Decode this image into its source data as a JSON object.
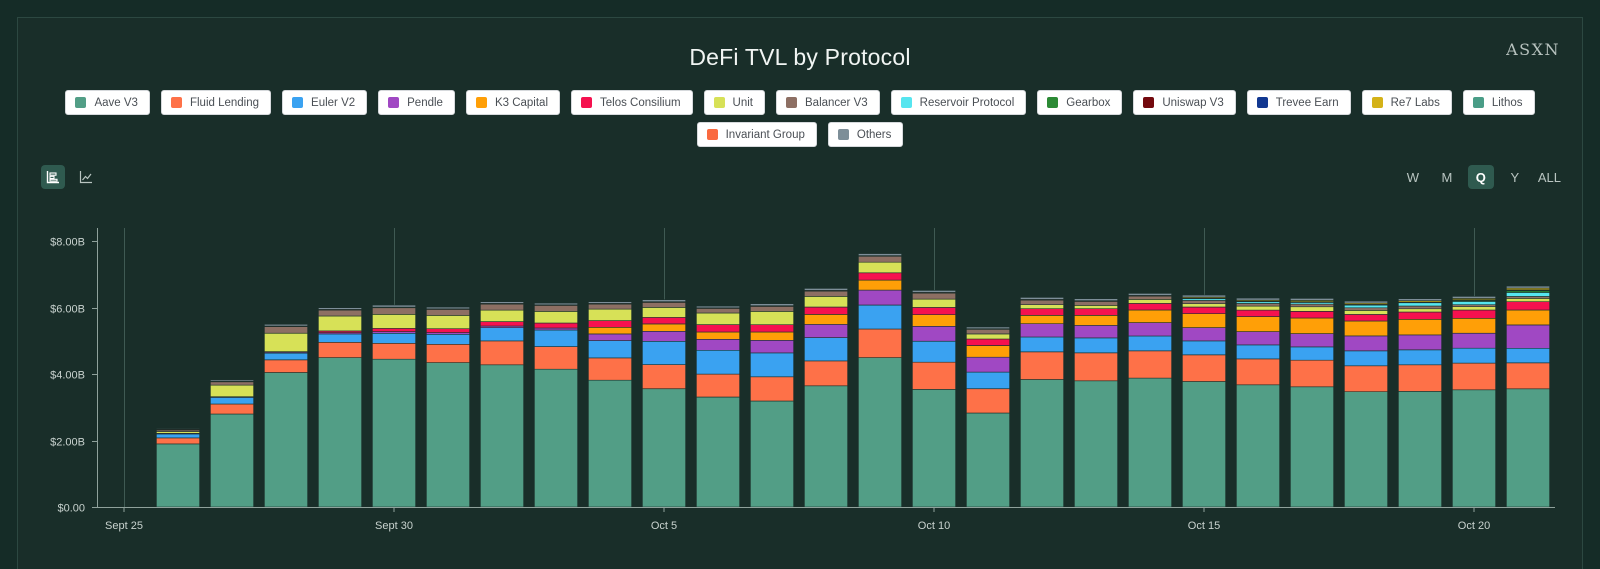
{
  "header": {
    "title": "DeFi TVL by Protocol",
    "watermark": "ASXN"
  },
  "legend": [
    {
      "label": "Aave V3",
      "color": "#529e86"
    },
    {
      "label": "Fluid Lending",
      "color": "#fe7148"
    },
    {
      "label": "Euler V2",
      "color": "#3aa2f1"
    },
    {
      "label": "Pendle",
      "color": "#a048c3"
    },
    {
      "label": "K3 Capital",
      "color": "#ff9f07"
    },
    {
      "label": "Telos Consilium",
      "color": "#f5114f"
    },
    {
      "label": "Unit",
      "color": "#d7e157"
    },
    {
      "label": "Balancer V3",
      "color": "#8d6f63"
    },
    {
      "label": "Reservoir Protocol",
      "color": "#56e5ef"
    },
    {
      "label": "Gearbox",
      "color": "#2c8a35"
    },
    {
      "label": "Uniswap V3",
      "color": "#73090e"
    },
    {
      "label": "Trevee Earn",
      "color": "#123891"
    },
    {
      "label": "Re7 Labs",
      "color": "#d4b218"
    },
    {
      "label": "Lithos",
      "color": "#4a9d87"
    },
    {
      "label": "Invariant Group",
      "color": "#fa6a40"
    },
    {
      "label": "Others",
      "color": "#7d8e98"
    }
  ],
  "controls": {
    "chart_types": [
      "stacked-bar-chart-icon",
      "line-chart-icon"
    ],
    "active_chart_type": 0,
    "ranges": [
      "W",
      "M",
      "Q",
      "Y",
      "ALL"
    ],
    "active_range": "Q"
  },
  "chart_data": {
    "type": "bar",
    "stacked": true,
    "title": "DeFi TVL by Protocol",
    "xlabel": "",
    "ylabel": "",
    "ylim": [
      0,
      8.4
    ],
    "y_ticks": [
      0,
      2,
      4,
      6,
      8
    ],
    "y_tick_labels": [
      "$0.00",
      "$2.00B",
      "$4.00B",
      "$6.00B",
      "$8.00B"
    ],
    "x_tick_labels": [
      {
        "label": "Sept 25",
        "day": 0
      },
      {
        "label": "Sept 30",
        "day": 5
      },
      {
        "label": "Oct 5",
        "day": 10
      },
      {
        "label": "Oct 10",
        "day": 15
      },
      {
        "label": "Oct 15",
        "day": 20
      },
      {
        "label": "Oct 20",
        "day": 25
      }
    ],
    "x_range": [
      -0.5,
      26.5
    ],
    "categories": [
      "Sept 26",
      "Sept 27",
      "Sept 28",
      "Sept 29",
      "Sept 30",
      "Oct 1",
      "Oct 2",
      "Oct 3",
      "Oct 4",
      "Oct 5",
      "Oct 6",
      "Oct 7",
      "Oct 8",
      "Oct 9",
      "Oct 10",
      "Oct 11",
      "Oct 12",
      "Oct 13",
      "Oct 14",
      "Oct 15",
      "Oct 16",
      "Oct 17",
      "Oct 18",
      "Oct 19",
      "Oct 20",
      "Oct 21"
    ],
    "days": [
      1,
      2,
      3,
      4,
      5,
      6,
      7,
      8,
      9,
      10,
      11,
      12,
      13,
      14,
      15,
      16,
      17,
      18,
      19,
      20,
      21,
      22,
      23,
      24,
      25,
      26
    ],
    "series": [
      {
        "name": "Aave V3",
        "values": [
          1.9,
          2.8,
          4.05,
          4.5,
          4.45,
          4.35,
          4.28,
          4.15,
          3.82,
          3.56,
          3.31,
          3.19,
          3.65,
          4.5,
          3.54,
          2.83,
          3.84,
          3.8,
          3.88,
          3.78,
          3.68,
          3.62,
          3.47,
          3.48,
          3.53,
          3.56
        ]
      },
      {
        "name": "Fluid Lending",
        "values": [
          0.18,
          0.3,
          0.38,
          0.46,
          0.48,
          0.55,
          0.72,
          0.68,
          0.67,
          0.73,
          0.69,
          0.73,
          0.75,
          0.86,
          0.82,
          0.73,
          0.83,
          0.84,
          0.82,
          0.8,
          0.78,
          0.8,
          0.78,
          0.8,
          0.8,
          0.78
        ]
      },
      {
        "name": "Euler V2",
        "values": [
          0.12,
          0.2,
          0.2,
          0.25,
          0.3,
          0.3,
          0.4,
          0.5,
          0.52,
          0.7,
          0.72,
          0.72,
          0.7,
          0.72,
          0.63,
          0.5,
          0.45,
          0.45,
          0.45,
          0.42,
          0.42,
          0.4,
          0.45,
          0.45,
          0.45,
          0.44
        ]
      },
      {
        "name": "Pendle",
        "values": [
          0.02,
          0.02,
          0.03,
          0.04,
          0.05,
          0.05,
          0.05,
          0.06,
          0.2,
          0.3,
          0.33,
          0.38,
          0.4,
          0.45,
          0.45,
          0.45,
          0.4,
          0.38,
          0.4,
          0.4,
          0.4,
          0.4,
          0.45,
          0.45,
          0.45,
          0.7
        ]
      },
      {
        "name": "K3 Capital",
        "values": [
          0,
          0,
          0,
          0,
          0,
          0,
          0,
          0,
          0.2,
          0.22,
          0.22,
          0.25,
          0.3,
          0.3,
          0.35,
          0.35,
          0.25,
          0.3,
          0.38,
          0.42,
          0.45,
          0.47,
          0.45,
          0.47,
          0.45,
          0.45
        ]
      },
      {
        "name": "Telos Consilium",
        "values": [
          0,
          0,
          0.02,
          0.05,
          0.1,
          0.12,
          0.13,
          0.15,
          0.2,
          0.2,
          0.22,
          0.22,
          0.22,
          0.22,
          0.22,
          0.2,
          0.2,
          0.2,
          0.2,
          0.2,
          0.2,
          0.2,
          0.2,
          0.22,
          0.25,
          0.25
        ]
      },
      {
        "name": "Unit",
        "values": [
          0.05,
          0.35,
          0.55,
          0.45,
          0.42,
          0.4,
          0.35,
          0.35,
          0.35,
          0.3,
          0.35,
          0.4,
          0.32,
          0.32,
          0.25,
          0.15,
          0.12,
          0.1,
          0.12,
          0.1,
          0.12,
          0.14,
          0.12,
          0.1,
          0.1,
          0.1
        ]
      },
      {
        "name": "Balancer V3",
        "values": [
          0.05,
          0.1,
          0.2,
          0.18,
          0.2,
          0.18,
          0.18,
          0.18,
          0.15,
          0.15,
          0.14,
          0.15,
          0.16,
          0.18,
          0.18,
          0.14,
          0.14,
          0.12,
          0.1,
          0.1,
          0.08,
          0.08,
          0.08,
          0.08,
          0.06,
          0.06
        ]
      },
      {
        "name": "Reservoir Protocol",
        "values": [
          0,
          0,
          0,
          0,
          0,
          0,
          0,
          0,
          0,
          0,
          0,
          0,
          0,
          0,
          0,
          0,
          0,
          0,
          0,
          0.05,
          0.05,
          0.05,
          0.08,
          0.1,
          0.1,
          0.12
        ]
      },
      {
        "name": "Gearbox",
        "values": [
          0,
          0,
          0,
          0,
          0,
          0,
          0,
          0,
          0,
          0,
          0,
          0,
          0,
          0,
          0,
          0,
          0,
          0,
          0,
          0,
          0,
          0,
          0,
          0,
          0.03,
          0.05
        ]
      },
      {
        "name": "Uniswap V3",
        "values": [
          0.02,
          0.02,
          0.02,
          0.02,
          0.02,
          0.02,
          0.02,
          0.02,
          0.02,
          0.02,
          0.02,
          0.02,
          0.02,
          0.02,
          0.02,
          0.02,
          0.02,
          0.02,
          0.02,
          0.02,
          0.02,
          0.02,
          0.02,
          0.02,
          0.02,
          0.02
        ]
      },
      {
        "name": "Trevee Earn",
        "values": [
          0,
          0,
          0,
          0,
          0,
          0,
          0,
          0,
          0,
          0,
          0,
          0,
          0,
          0,
          0,
          0,
          0,
          0,
          0,
          0,
          0,
          0,
          0,
          0,
          0,
          0.01
        ]
      },
      {
        "name": "Re7 Labs",
        "values": [
          0,
          0,
          0,
          0,
          0,
          0,
          0,
          0,
          0,
          0,
          0,
          0,
          0,
          0,
          0,
          0,
          0,
          0,
          0,
          0.03,
          0.03,
          0.04,
          0.04,
          0.04,
          0.04,
          0.05
        ]
      },
      {
        "name": "Lithos",
        "values": [
          0,
          0,
          0,
          0,
          0,
          0,
          0,
          0,
          0,
          0,
          0,
          0,
          0,
          0,
          0,
          0,
          0,
          0,
          0,
          0,
          0,
          0,
          0,
          0,
          0,
          0
        ]
      },
      {
        "name": "Invariant Group",
        "values": [
          0,
          0,
          0,
          0,
          0,
          0,
          0,
          0,
          0,
          0,
          0,
          0,
          0,
          0,
          0,
          0,
          0,
          0,
          0,
          0,
          0,
          0,
          0,
          0,
          0,
          0
        ]
      },
      {
        "name": "Others",
        "values": [
          0.02,
          0.04,
          0.05,
          0.05,
          0.06,
          0.05,
          0.05,
          0.05,
          0.05,
          0.06,
          0.05,
          0.06,
          0.06,
          0.06,
          0.06,
          0.05,
          0.06,
          0.06,
          0.06,
          0.06,
          0.06,
          0.06,
          0.06,
          0.06,
          0.06,
          0.06
        ]
      }
    ]
  }
}
